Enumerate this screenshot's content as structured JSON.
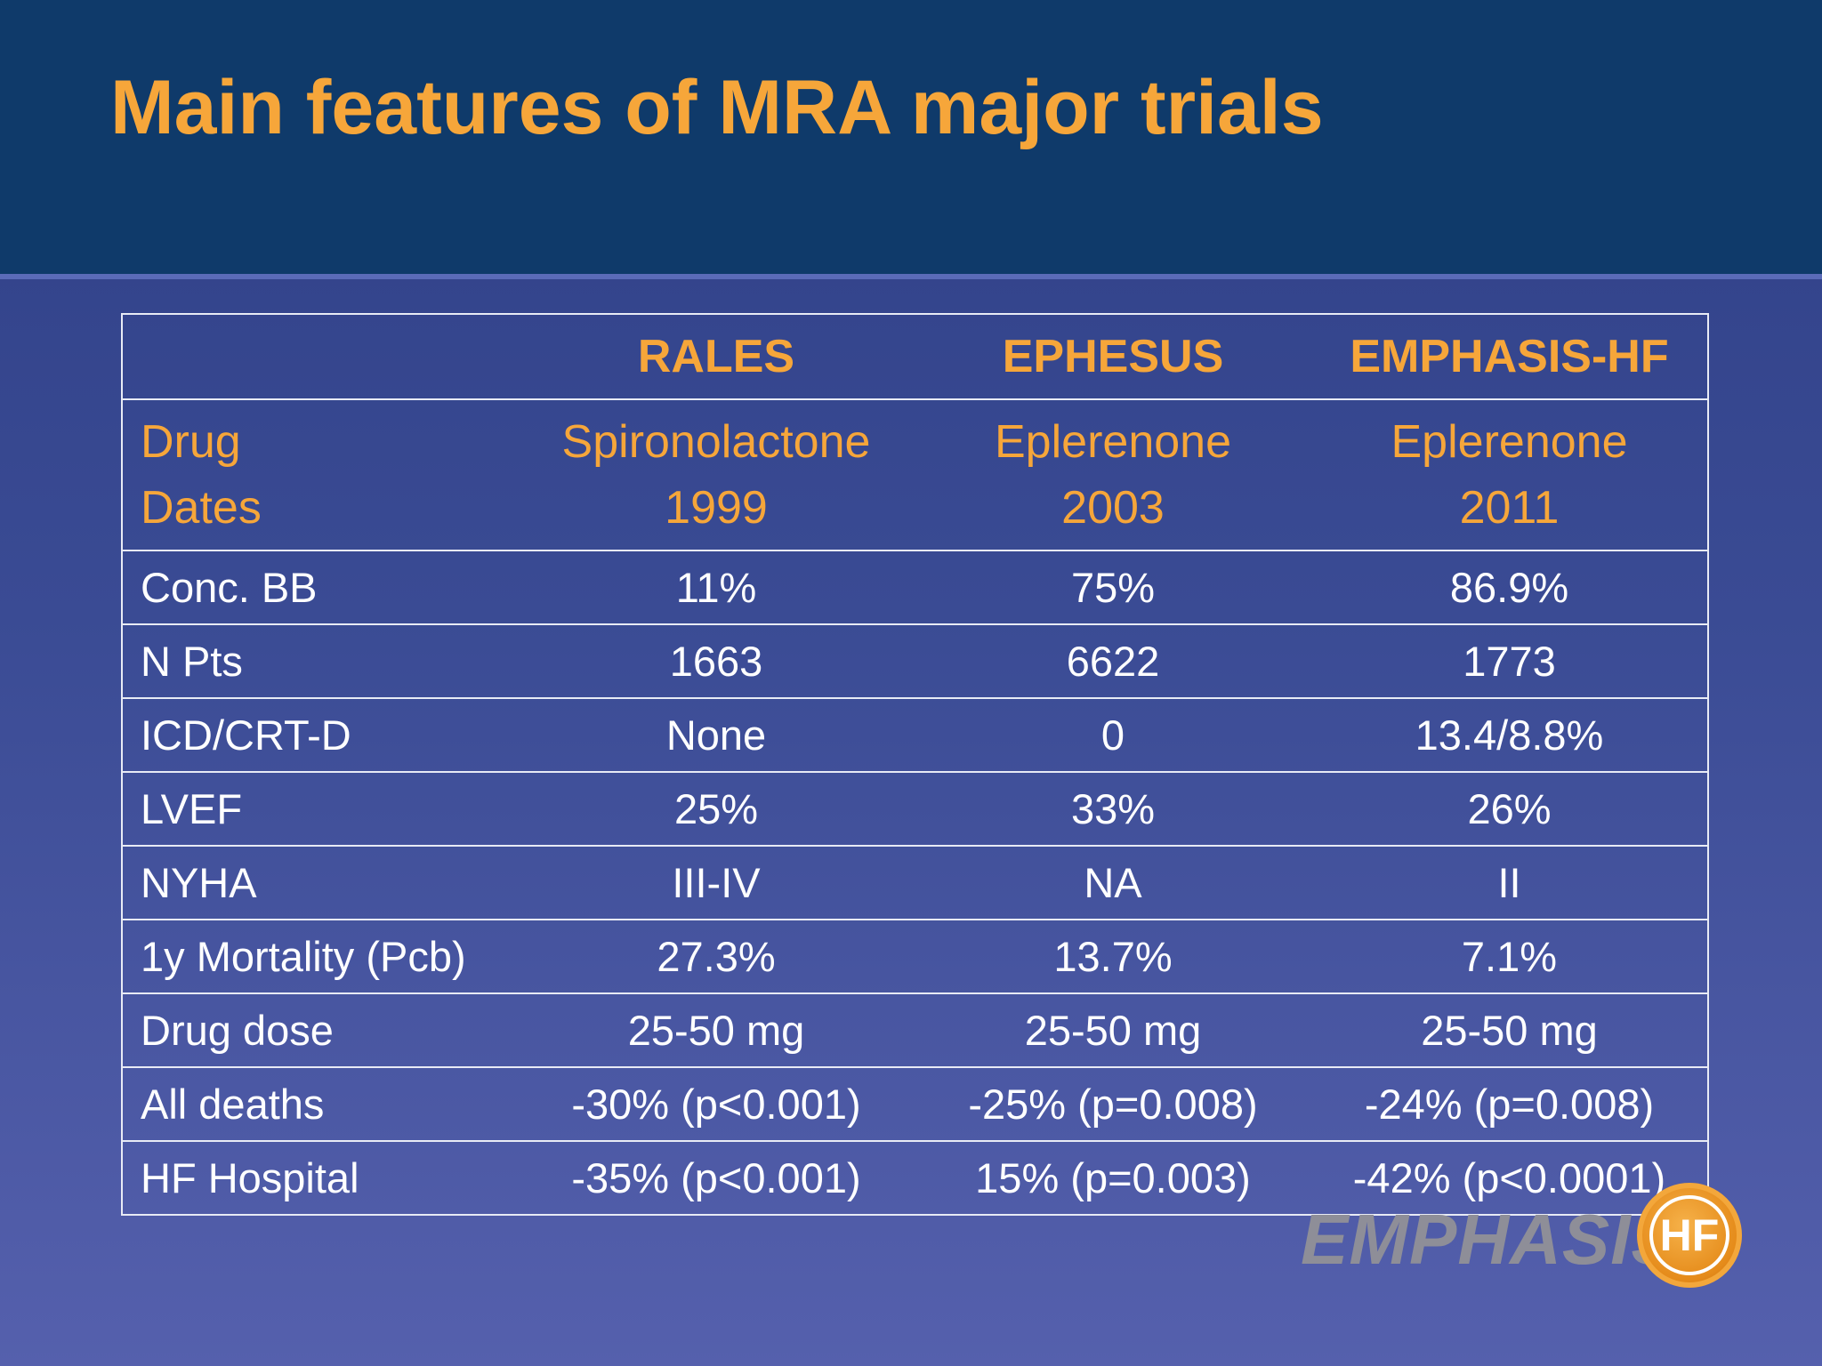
{
  "title": "Main features of MRA major trials",
  "table": {
    "columns": [
      "",
      "RALES",
      "EPHESUS",
      "EMPHASIS-HF"
    ],
    "drug_row": {
      "label_line1": "Drug",
      "label_line2": "Dates",
      "cells": [
        {
          "drug": "Spironolactone",
          "date": "1999"
        },
        {
          "drug": "Eplerenone",
          "date": "2003"
        },
        {
          "drug": "Eplerenone",
          "date": "2011"
        }
      ]
    },
    "rows": [
      {
        "label": "Conc. BB",
        "values": [
          "11%",
          "75%",
          "86.9%"
        ]
      },
      {
        "label": "N Pts",
        "values": [
          "1663",
          "6622",
          "1773"
        ]
      },
      {
        "label": "ICD/CRT-D",
        "values": [
          "None",
          "0",
          "13.4/8.8%"
        ]
      },
      {
        "label": "LVEF",
        "values": [
          "25%",
          "33%",
          "26%"
        ]
      },
      {
        "label": "NYHA",
        "values": [
          "III-IV",
          "NA",
          "II"
        ]
      },
      {
        "label": "1y Mortality (Pcb)",
        "values": [
          "27.3%",
          "13.7%",
          "7.1%"
        ]
      },
      {
        "label": "Drug dose",
        "values": [
          "25-50 mg",
          "25-50 mg",
          "25-50 mg"
        ]
      },
      {
        "label": "All deaths",
        "values": [
          "-30% (p<0.001)",
          "-25% (p=0.008)",
          "-24% (p=0.008)"
        ]
      },
      {
        "label": "HF Hospital",
        "values": [
          "-35% (p<0.001)",
          "15% (p=0.003)",
          "-42% (p<0.0001)"
        ]
      }
    ]
  },
  "logo": {
    "text": "EMPHASIS",
    "badge": "HF"
  },
  "colors": {
    "header_band": "#0f3a6a",
    "accent_orange": "#f6a63a",
    "body_text": "#ffffff",
    "table_lines": "#e8ebf5"
  }
}
